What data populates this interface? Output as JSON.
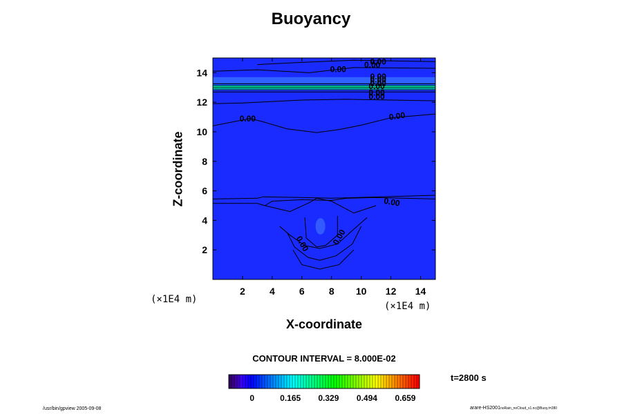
{
  "chart_data": {
    "type": "heatmap",
    "title": "Buoyancy",
    "xlabel": "X-coordinate",
    "ylabel": "Z-coordinate",
    "x_unit": "(×1E4 m)",
    "y_unit": "(×1E4 m)",
    "xlim": [
      0,
      15
    ],
    "ylim": [
      0,
      15
    ],
    "x_ticks": [
      2,
      4,
      6,
      8,
      10,
      12,
      14
    ],
    "y_ticks": [
      2,
      4,
      6,
      8,
      10,
      12,
      14
    ],
    "contour_interval_label": "CONTOUR INTERVAL = 8.000E-02",
    "contour_label": "0.00",
    "colorbar_ticks": [
      "0",
      "0.165",
      "0.329",
      "0.494",
      "0.659"
    ],
    "colorbar_range": [
      -0.1,
      0.72
    ],
    "background_value": -0.02,
    "features": [
      {
        "name": "upper-bright-band",
        "x": [
          0,
          15
        ],
        "z": [
          12.9,
          13.1
        ],
        "value": 0.2
      },
      {
        "name": "upper-faint-band",
        "x": [
          0,
          15
        ],
        "z": [
          13.3,
          13.6
        ],
        "value": 0.05
      },
      {
        "name": "lower-blob",
        "x": [
          7.2,
          7.3
        ],
        "z": [
          3.3,
          3.9
        ],
        "value": 0.05
      }
    ],
    "colors": {
      "background": "#1a2bff",
      "band_bright": "#00f0a0",
      "band_mid": "#00c8ff",
      "band_faint": "#3a7bff",
      "blob": "#3a66ff",
      "contour": "#000000"
    }
  },
  "time_label": "t=2800 s",
  "footer_left": "/usr/bin/gpview 2005-09-08",
  "footer_right_main": "arare-HS2001",
  "footer_right_sub": "noRain_noCloud_x1.nc@Buoy,t=280"
}
